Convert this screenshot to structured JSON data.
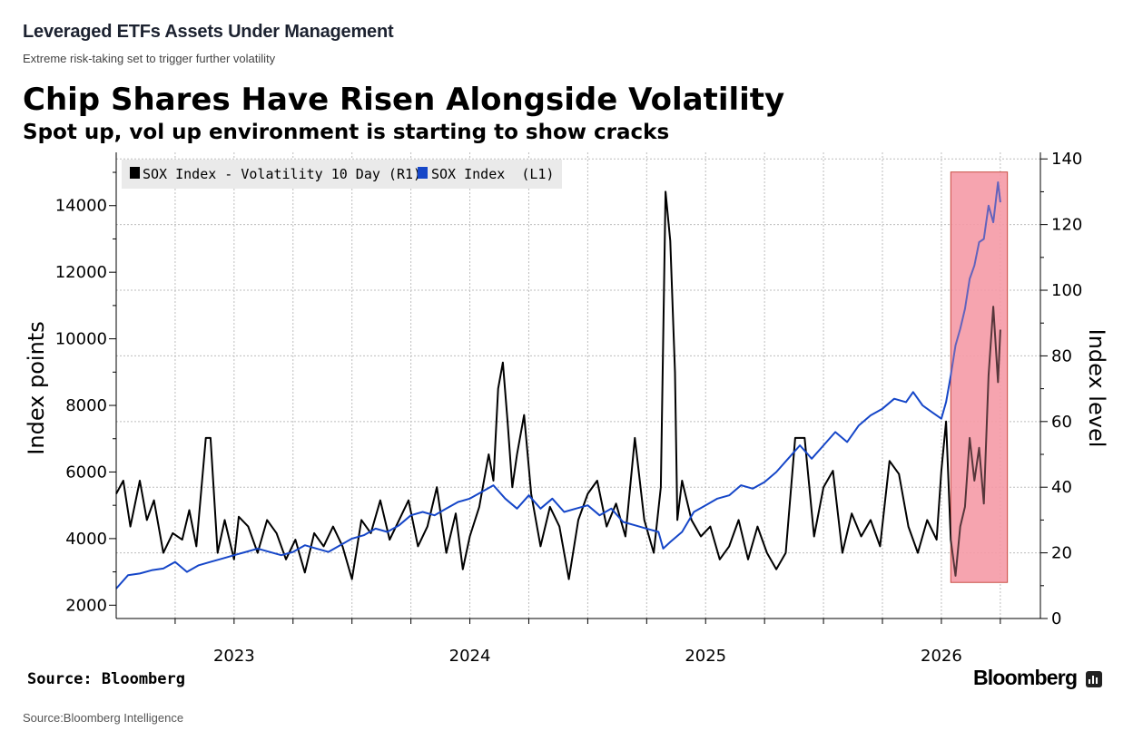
{
  "header": {
    "title": "Leveraged ETFs Assets Under Management",
    "subtitle": "Extreme risk-taking set to trigger further volatility"
  },
  "footer": {
    "source_in_chart": "Source: Bloomberg",
    "brand": "Bloomberg",
    "source": "Source:Bloomberg Intelligence"
  },
  "colors": {
    "sox_index": "#1546c8",
    "volatility": "#000000",
    "highlight_fill": "#f59aa7",
    "highlight_stroke": "#c0392b",
    "legend_bg": "#eaeaea",
    "grid": "#bdbdbd"
  },
  "chart_data": {
    "type": "line",
    "title": "Chip Shares Have Risen Alongside Volatility",
    "subtitle": "Spot up, vol up environment is starting to show cracks",
    "ylabel_left": "Index points",
    "ylabel_right": "Index level",
    "ylim_left": [
      1600,
      15600
    ],
    "ylim_right": [
      0,
      142
    ],
    "yticks_left": [
      2000,
      4000,
      6000,
      8000,
      10000,
      12000,
      14000
    ],
    "yticks_right": [
      0,
      20,
      40,
      60,
      80,
      100,
      120,
      140
    ],
    "x_range": [
      2022.5,
      2026.42
    ],
    "x_tick_labels": [
      "2023",
      "2024",
      "2025",
      "2026"
    ],
    "x_tick_positions": [
      2023.0,
      2024.0,
      2025.0,
      2026.0
    ],
    "grid": true,
    "legend_position": "top-left",
    "highlight": {
      "x": [
        2026.04,
        2026.28
      ],
      "y_right": [
        11,
        136
      ]
    },
    "series": [
      {
        "name": "SOX Index - Volatility 10 Day (R1)",
        "axis": "right",
        "color": "#000000",
        "points": [
          [
            2022.5,
            38
          ],
          [
            2022.53,
            42
          ],
          [
            2022.56,
            28
          ],
          [
            2022.6,
            42
          ],
          [
            2022.63,
            30
          ],
          [
            2022.66,
            36
          ],
          [
            2022.7,
            20
          ],
          [
            2022.74,
            26
          ],
          [
            2022.78,
            24
          ],
          [
            2022.81,
            33
          ],
          [
            2022.84,
            22
          ],
          [
            2022.88,
            55
          ],
          [
            2022.9,
            55
          ],
          [
            2022.93,
            20
          ],
          [
            2022.96,
            30
          ],
          [
            2023.0,
            18
          ],
          [
            2023.02,
            31
          ],
          [
            2023.06,
            28
          ],
          [
            2023.1,
            20
          ],
          [
            2023.14,
            30
          ],
          [
            2023.18,
            26
          ],
          [
            2023.22,
            18
          ],
          [
            2023.26,
            24
          ],
          [
            2023.3,
            14
          ],
          [
            2023.34,
            26
          ],
          [
            2023.38,
            22
          ],
          [
            2023.42,
            28
          ],
          [
            2023.46,
            22
          ],
          [
            2023.5,
            12
          ],
          [
            2023.54,
            30
          ],
          [
            2023.58,
            26
          ],
          [
            2023.62,
            36
          ],
          [
            2023.66,
            24
          ],
          [
            2023.7,
            30
          ],
          [
            2023.74,
            36
          ],
          [
            2023.78,
            22
          ],
          [
            2023.82,
            28
          ],
          [
            2023.86,
            40
          ],
          [
            2023.9,
            20
          ],
          [
            2023.94,
            32
          ],
          [
            2023.97,
            15
          ],
          [
            2024.0,
            25
          ],
          [
            2024.04,
            34
          ],
          [
            2024.08,
            50
          ],
          [
            2024.1,
            42
          ],
          [
            2024.12,
            70
          ],
          [
            2024.14,
            78
          ],
          [
            2024.16,
            60
          ],
          [
            2024.18,
            40
          ],
          [
            2024.2,
            50
          ],
          [
            2024.23,
            62
          ],
          [
            2024.26,
            38
          ],
          [
            2024.3,
            22
          ],
          [
            2024.34,
            34
          ],
          [
            2024.38,
            28
          ],
          [
            2024.42,
            12
          ],
          [
            2024.46,
            30
          ],
          [
            2024.5,
            38
          ],
          [
            2024.54,
            42
          ],
          [
            2024.58,
            28
          ],
          [
            2024.62,
            35
          ],
          [
            2024.66,
            25
          ],
          [
            2024.7,
            55
          ],
          [
            2024.74,
            30
          ],
          [
            2024.78,
            20
          ],
          [
            2024.81,
            40
          ],
          [
            2024.83,
            130
          ],
          [
            2024.85,
            115
          ],
          [
            2024.87,
            75
          ],
          [
            2024.88,
            30
          ],
          [
            2024.9,
            42
          ],
          [
            2024.94,
            30
          ],
          [
            2024.98,
            25
          ],
          [
            2025.02,
            28
          ],
          [
            2025.06,
            18
          ],
          [
            2025.1,
            22
          ],
          [
            2025.14,
            30
          ],
          [
            2025.18,
            18
          ],
          [
            2025.22,
            28
          ],
          [
            2025.26,
            20
          ],
          [
            2025.3,
            15
          ],
          [
            2025.34,
            20
          ],
          [
            2025.38,
            55
          ],
          [
            2025.42,
            55
          ],
          [
            2025.46,
            25
          ],
          [
            2025.5,
            40
          ],
          [
            2025.54,
            45
          ],
          [
            2025.58,
            20
          ],
          [
            2025.62,
            32
          ],
          [
            2025.66,
            25
          ],
          [
            2025.7,
            30
          ],
          [
            2025.74,
            22
          ],
          [
            2025.78,
            48
          ],
          [
            2025.82,
            44
          ],
          [
            2025.86,
            28
          ],
          [
            2025.9,
            20
          ],
          [
            2025.94,
            30
          ],
          [
            2025.98,
            24
          ],
          [
            2026.0,
            45
          ],
          [
            2026.02,
            60
          ],
          [
            2026.04,
            24
          ],
          [
            2026.06,
            13
          ],
          [
            2026.08,
            28
          ],
          [
            2026.1,
            34
          ],
          [
            2026.12,
            55
          ],
          [
            2026.14,
            42
          ],
          [
            2026.16,
            52
          ],
          [
            2026.18,
            35
          ],
          [
            2026.2,
            74
          ],
          [
            2026.22,
            95
          ],
          [
            2026.24,
            72
          ],
          [
            2026.25,
            88
          ]
        ]
      },
      {
        "name": "SOX Index  (L1)",
        "axis": "left",
        "color": "#1546c8",
        "points": [
          [
            2022.5,
            2500
          ],
          [
            2022.55,
            2900
          ],
          [
            2022.6,
            2950
          ],
          [
            2022.65,
            3050
          ],
          [
            2022.7,
            3100
          ],
          [
            2022.75,
            3300
          ],
          [
            2022.8,
            3000
          ],
          [
            2022.85,
            3200
          ],
          [
            2022.9,
            3300
          ],
          [
            2022.95,
            3400
          ],
          [
            2023.0,
            3500
          ],
          [
            2023.05,
            3600
          ],
          [
            2023.1,
            3700
          ],
          [
            2023.15,
            3600
          ],
          [
            2023.2,
            3500
          ],
          [
            2023.25,
            3600
          ],
          [
            2023.3,
            3800
          ],
          [
            2023.35,
            3700
          ],
          [
            2023.4,
            3600
          ],
          [
            2023.45,
            3800
          ],
          [
            2023.5,
            4000
          ],
          [
            2023.55,
            4100
          ],
          [
            2023.6,
            4300
          ],
          [
            2023.65,
            4200
          ],
          [
            2023.7,
            4400
          ],
          [
            2023.75,
            4700
          ],
          [
            2023.8,
            4800
          ],
          [
            2023.85,
            4700
          ],
          [
            2023.9,
            4900
          ],
          [
            2023.95,
            5100
          ],
          [
            2024.0,
            5200
          ],
          [
            2024.05,
            5400
          ],
          [
            2024.1,
            5600
          ],
          [
            2024.15,
            5200
          ],
          [
            2024.2,
            4900
          ],
          [
            2024.25,
            5300
          ],
          [
            2024.3,
            4900
          ],
          [
            2024.35,
            5200
          ],
          [
            2024.4,
            4800
          ],
          [
            2024.45,
            4900
          ],
          [
            2024.5,
            5000
          ],
          [
            2024.55,
            4700
          ],
          [
            2024.6,
            4900
          ],
          [
            2024.65,
            4500
          ],
          [
            2024.7,
            4400
          ],
          [
            2024.75,
            4300
          ],
          [
            2024.8,
            4200
          ],
          [
            2024.82,
            3700
          ],
          [
            2024.85,
            3900
          ],
          [
            2024.9,
            4200
          ],
          [
            2024.95,
            4800
          ],
          [
            2025.0,
            5000
          ],
          [
            2025.05,
            5200
          ],
          [
            2025.1,
            5300
          ],
          [
            2025.15,
            5600
          ],
          [
            2025.2,
            5500
          ],
          [
            2025.25,
            5700
          ],
          [
            2025.3,
            6000
          ],
          [
            2025.35,
            6400
          ],
          [
            2025.4,
            6800
          ],
          [
            2025.45,
            6400
          ],
          [
            2025.5,
            6800
          ],
          [
            2025.55,
            7200
          ],
          [
            2025.6,
            6900
          ],
          [
            2025.65,
            7400
          ],
          [
            2025.7,
            7700
          ],
          [
            2025.75,
            7900
          ],
          [
            2025.8,
            8200
          ],
          [
            2025.85,
            8100
          ],
          [
            2025.88,
            8400
          ],
          [
            2025.92,
            8000
          ],
          [
            2025.96,
            7800
          ],
          [
            2026.0,
            7600
          ],
          [
            2026.02,
            8100
          ],
          [
            2026.04,
            8900
          ],
          [
            2026.06,
            9800
          ],
          [
            2026.08,
            10300
          ],
          [
            2026.1,
            10900
          ],
          [
            2026.12,
            11800
          ],
          [
            2026.14,
            12200
          ],
          [
            2026.16,
            12900
          ],
          [
            2026.18,
            13000
          ],
          [
            2026.2,
            14000
          ],
          [
            2026.22,
            13500
          ],
          [
            2026.24,
            14700
          ],
          [
            2026.25,
            14100
          ]
        ]
      }
    ]
  }
}
